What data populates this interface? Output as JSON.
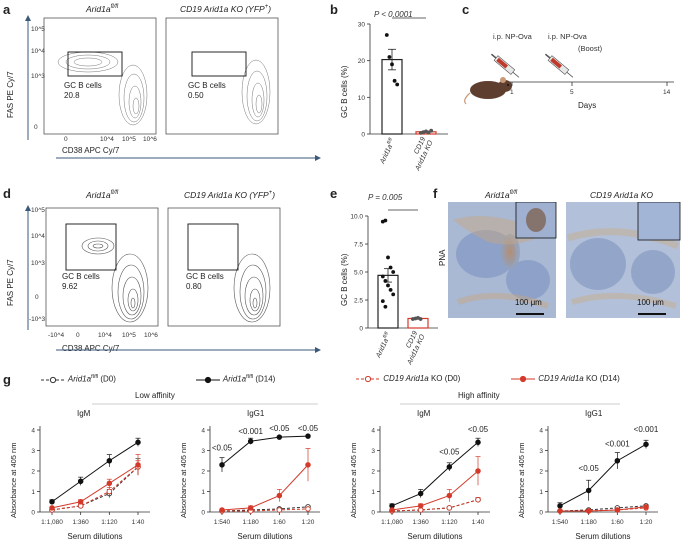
{
  "panels": {
    "a": {
      "label": "a",
      "plot1_title": "Arid1a",
      "plot1_title_sup": "fl/fl",
      "plot2_title": "CD19 Arid1a KO (YFP",
      "plot2_title_sup": "+",
      "plot2_title_end": ")",
      "ylabel": "FAS PE Cy/7",
      "xlabel": "CD38 APC Cy/7",
      "gate_label": "GC B cells",
      "gate1_value": "20.8",
      "gate2_value": "0.50",
      "yticks": [
        "10^5",
        "10^4",
        "10^3",
        "0"
      ],
      "xticks": [
        "0",
        "10^4",
        "10^5",
        "10^6"
      ]
    },
    "b": {
      "label": "b",
      "pvalue": "P < 0.0001",
      "ylabel": "GC B cells (%)",
      "yticks": [
        "0",
        "10",
        "20",
        "30"
      ],
      "cat1": "Arid1a fl/fl",
      "cat2a": "CD19",
      "cat2b": "Arid1a KO"
    },
    "c": {
      "label": "c",
      "inj1": "i.p. NP-Ova",
      "inj2": "i.p. NP-Ova",
      "boost": "(Boost)",
      "ticks": [
        "1",
        "5",
        "14"
      ],
      "xlabel": "Days"
    },
    "d": {
      "label": "d",
      "plot1_title": "Arid1a",
      "plot1_title_sup": "fl/fl",
      "plot2_title": "CD19 Arid1a KO (YFP",
      "plot2_title_sup": "+",
      "plot2_title_end": ")",
      "ylabel": "FAS PE Cy/7",
      "xlabel": "CD38 APC Cy/7",
      "gate_label": "GC B cells",
      "gate1_value": "9.62",
      "gate2_value": "0.80",
      "yticks": [
        "10^5",
        "10^4",
        "10^3",
        "0",
        "-10^3"
      ],
      "xticks": [
        "-10^4",
        "0",
        "10^4",
        "10^5",
        "10^6"
      ]
    },
    "e": {
      "label": "e",
      "pvalue": "P = 0.005",
      "ylabel": "GC B cells (%)",
      "yticks": [
        "0",
        "2.5",
        "5.0",
        "7.5",
        "10.0"
      ],
      "cat1": "Arid1a fl/fl",
      "cat2a": "CD19",
      "cat2b": "Arid1a KO"
    },
    "f": {
      "label": "f",
      "title1": "Arid1a",
      "title1_sup": "fl/fl",
      "title2": "CD19 Arid1a KO",
      "ylabel": "PNA",
      "scalebar": "100 μm"
    },
    "g": {
      "label": "g",
      "low_affinity": "Low affinity",
      "high_affinity": "High affinity",
      "ylabel": "Absorbance at 405 nm",
      "xlabel": "Serum dilutions"
    }
  },
  "legend": [
    {
      "text": "Arid1a",
      "sup": "fl/fl",
      "suffix": " (D0)",
      "color": "#333333",
      "dashed": true,
      "filled": false
    },
    {
      "text": "Arid1a",
      "sup": "fl/fl",
      "suffix": " (D14)",
      "color": "#111111",
      "dashed": false,
      "filled": true
    },
    {
      "text": "CD19 Arid1a",
      "sup": "",
      "suffix": " KO (D0)",
      "color": "#d43a2a",
      "dashed": true,
      "filled": false
    },
    {
      "text": "CD19 Arid1a",
      "sup": "",
      "suffix": " KO (D14)",
      "color": "#d43a2a",
      "dashed": false,
      "filled": true
    }
  ],
  "chart_data": [
    {
      "type": "bar",
      "panel": "b",
      "categories": [
        "Arid1a fl/fl",
        "CD19 Arid1a KO"
      ],
      "values": [
        20.3,
        0.6
      ],
      "errors": [
        2.8,
        0.2
      ],
      "points": [
        [
          27.0,
          21.0,
          19.0,
          14.5,
          13.5
        ],
        [
          0.3,
          0.5,
          0.7,
          0.4,
          0.9
        ]
      ],
      "colors": [
        "#222222",
        "#d43a2a"
      ],
      "ylabel": "GC B cells (%)",
      "ylim": [
        0,
        30
      ],
      "annotation": "P < 0.0001"
    },
    {
      "type": "bar",
      "panel": "e",
      "categories": [
        "Arid1a fl/fl",
        "CD19 Arid1a KO"
      ],
      "values": [
        4.7,
        0.85
      ],
      "errors": [
        0.6,
        0.05
      ],
      "points": [
        [
          9.5,
          9.6,
          6.3,
          5.4,
          5.0,
          4.6,
          4.2,
          3.8,
          3.4,
          3.0,
          2.4,
          1.9
        ],
        [
          0.8,
          0.85,
          0.9,
          0.8
        ]
      ],
      "colors": [
        "#222222",
        "#d43a2a"
      ],
      "ylabel": "GC B cells (%)",
      "ylim": [
        0,
        10
      ],
      "annotation": "P = 0.005"
    },
    {
      "type": "line",
      "panel": "g1",
      "title": "IgM",
      "categories": [
        "1:1,080",
        "1:360",
        "1:120",
        "1:40"
      ],
      "ylim": [
        0,
        4
      ],
      "yticks": [
        "0",
        "1",
        "2",
        "3",
        "4"
      ],
      "xlabel": "Serum dilutions",
      "ylabel": "Absorbance at 405 nm",
      "annotations": [],
      "series": [
        {
          "name": "Arid1a fl/fl (D0)",
          "values": [
            0.1,
            0.3,
            0.9,
            2.2
          ],
          "errors": [
            0.05,
            0.1,
            0.2,
            0.4
          ]
        },
        {
          "name": "Arid1a fl/fl (D14)",
          "values": [
            0.5,
            1.5,
            2.5,
            3.4
          ],
          "errors": [
            0.1,
            0.2,
            0.3,
            0.2
          ]
        },
        {
          "name": "CD19 Arid1a KO (D0)",
          "values": [
            0.1,
            0.3,
            1.0,
            2.2
          ],
          "errors": [
            0.05,
            0.1,
            0.2,
            0.3
          ]
        },
        {
          "name": "CD19 Arid1a KO (D14)",
          "values": [
            0.2,
            0.5,
            1.4,
            2.3
          ],
          "errors": [
            0.05,
            0.1,
            0.2,
            0.5
          ]
        }
      ]
    },
    {
      "type": "line",
      "panel": "g2",
      "title": "IgG1",
      "categories": [
        "1:540",
        "1:180",
        "1:60",
        "1:20"
      ],
      "ylim": [
        0,
        4
      ],
      "yticks": [
        "0",
        "1",
        "2",
        "3",
        "4"
      ],
      "xlabel": "Serum dilutions",
      "ylabel": "Absorbance at 405 nm",
      "annotations": [
        {
          "text": "<0.05",
          "x": 0,
          "y": 2.9
        },
        {
          "text": "<0.001",
          "x": 1,
          "y": 3.7
        },
        {
          "text": "<0.05",
          "x": 2,
          "y": 3.85
        },
        {
          "text": "<0.05",
          "x": 3,
          "y": 3.85
        }
      ],
      "series": [
        {
          "name": "Arid1a fl/fl (D0)",
          "values": [
            0.05,
            0.1,
            0.15,
            0.25
          ],
          "errors": [
            0.02,
            0.03,
            0.05,
            0.05
          ]
        },
        {
          "name": "Arid1a fl/fl (D14)",
          "values": [
            2.3,
            3.45,
            3.65,
            3.7
          ],
          "errors": [
            0.35,
            0.15,
            0.05,
            0.05
          ]
        },
        {
          "name": "CD19 Arid1a KO (D0)",
          "values": [
            0.05,
            0.05,
            0.1,
            0.15
          ],
          "errors": [
            0.02,
            0.02,
            0.03,
            0.05
          ]
        },
        {
          "name": "CD19 Arid1a KO (D14)",
          "values": [
            0.1,
            0.2,
            0.8,
            2.3
          ],
          "errors": [
            0.05,
            0.1,
            0.3,
            0.8
          ]
        }
      ]
    },
    {
      "type": "line",
      "panel": "g3",
      "title": "IgM",
      "categories": [
        "1:1,080",
        "1:360",
        "1:120",
        "1:40"
      ],
      "ylim": [
        0,
        4
      ],
      "yticks": [
        "0",
        "1",
        "2",
        "3",
        "4"
      ],
      "xlabel": "Serum dilutions",
      "ylabel": "Absorbance at 405 nm",
      "annotations": [
        {
          "text": "<0.05",
          "x": 2,
          "y": 2.7
        },
        {
          "text": "<0.05",
          "x": 3,
          "y": 3.8
        }
      ],
      "series": [
        {
          "name": "Arid1a fl/fl (D0)",
          "values": [
            0.05,
            0.1,
            0.2,
            0.6
          ],
          "errors": [
            0.02,
            0.03,
            0.05,
            0.1
          ]
        },
        {
          "name": "Arid1a fl/fl (D14)",
          "values": [
            0.3,
            0.9,
            2.2,
            3.4
          ],
          "errors": [
            0.1,
            0.2,
            0.2,
            0.2
          ]
        },
        {
          "name": "CD19 Arid1a KO (D0)",
          "values": [
            0.05,
            0.1,
            0.2,
            0.6
          ],
          "errors": [
            0.02,
            0.03,
            0.05,
            0.1
          ]
        },
        {
          "name": "CD19 Arid1a KO (D14)",
          "values": [
            0.1,
            0.3,
            0.8,
            2.0
          ],
          "errors": [
            0.05,
            0.1,
            0.3,
            0.7
          ]
        }
      ]
    },
    {
      "type": "line",
      "panel": "g4",
      "title": "IgG1",
      "categories": [
        "1:540",
        "1:180",
        "1:60",
        "1:20"
      ],
      "ylim": [
        0,
        4
      ],
      "yticks": [
        "0",
        "1",
        "2",
        "3",
        "4"
      ],
      "xlabel": "Serum dilutions",
      "ylabel": "Absorbance at 405 nm",
      "annotations": [
        {
          "text": "<0.05",
          "x": 1,
          "y": 1.9
        },
        {
          "text": "<0.001",
          "x": 2,
          "y": 3.1
        },
        {
          "text": "<0.001",
          "x": 3,
          "y": 3.8
        }
      ],
      "series": [
        {
          "name": "Arid1a fl/fl (D0)",
          "values": [
            0.05,
            0.1,
            0.2,
            0.3
          ],
          "errors": [
            0.02,
            0.03,
            0.05,
            0.05
          ]
        },
        {
          "name": "Arid1a fl/fl (D14)",
          "values": [
            0.3,
            1.05,
            2.5,
            3.3
          ],
          "errors": [
            0.15,
            0.5,
            0.4,
            0.2
          ]
        },
        {
          "name": "CD19 Arid1a KO (D0)",
          "values": [
            0.05,
            0.05,
            0.1,
            0.2
          ],
          "errors": [
            0.02,
            0.02,
            0.03,
            0.05
          ]
        },
        {
          "name": "CD19 Arid1a KO (D14)",
          "values": [
            0.05,
            0.05,
            0.1,
            0.25
          ],
          "errors": [
            0.02,
            0.02,
            0.03,
            0.05
          ]
        }
      ]
    }
  ]
}
